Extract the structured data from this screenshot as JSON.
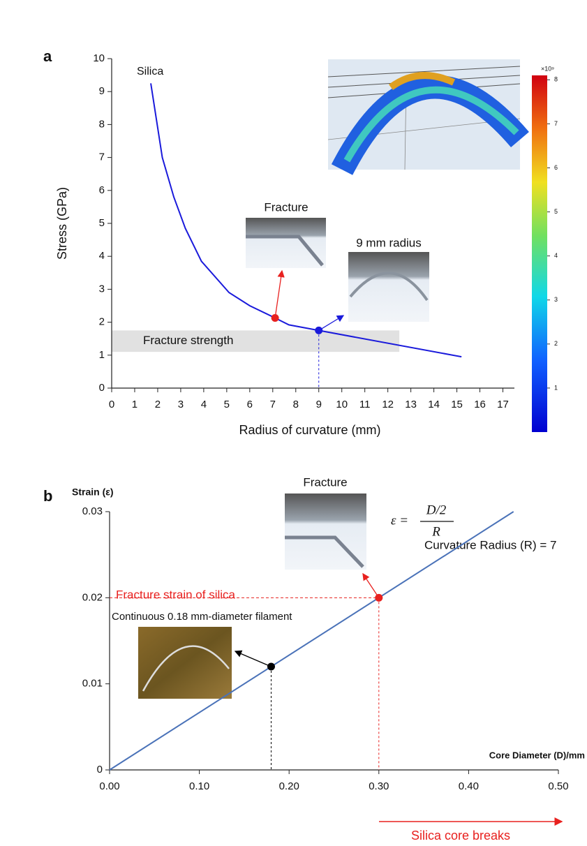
{
  "chart_data": [
    {
      "type": "line",
      "panel_label": "a",
      "x_label": "Radius of curvature (mm)",
      "y_label": "Stress (GPa)",
      "xlim": [
        0,
        17.5
      ],
      "ylim": [
        0,
        10
      ],
      "xticks": [
        0,
        1,
        2,
        3,
        4,
        5,
        6,
        7,
        8,
        9,
        10,
        11,
        12,
        13,
        14,
        15,
        16,
        17
      ],
      "yticks": [
        0,
        1,
        2,
        3,
        4,
        5,
        6,
        7,
        8,
        9,
        10
      ],
      "series": [
        {
          "name": "Silica",
          "color": "#1a1adb",
          "x": [
            1.7,
            2.2,
            2.7,
            3.2,
            3.9,
            5.1,
            6.0,
            7.1,
            7.7,
            9.0,
            15.2
          ],
          "values": [
            9.25,
            7.0,
            5.8,
            4.85,
            3.85,
            2.9,
            2.5,
            2.13,
            1.92,
            1.75,
            0.95
          ]
        }
      ],
      "band": {
        "label": "Fracture strength",
        "y": [
          1.1,
          1.75
        ],
        "x": [
          0,
          12.5
        ]
      },
      "points": [
        {
          "x": 7.1,
          "y": 2.13,
          "color": "#e8211f",
          "label": "Fracture"
        },
        {
          "x": 9.0,
          "y": 1.75,
          "color": "#1a1adb",
          "label": "9 mm radius"
        }
      ],
      "colorbar": {
        "multiplier": "×10⁹",
        "lim": [
          0,
          8.1
        ],
        "ticks": [
          1,
          2,
          3,
          4,
          5,
          6,
          7,
          8
        ]
      }
    },
    {
      "type": "line",
      "panel_label": "b",
      "x_label": "Core Diameter (D)/mm",
      "y_label": "Strain (ε)",
      "xlim": [
        0,
        0.5
      ],
      "ylim": [
        0,
        0.03
      ],
      "xticks": [
        {
          "value": 0,
          "label": "0.00"
        },
        {
          "value": 0.1,
          "label": "0.10"
        },
        {
          "value": 0.2,
          "label": "0.20"
        },
        {
          "value": 0.3,
          "label": "0.30"
        },
        {
          "value": 0.4,
          "label": "0.40"
        },
        {
          "value": 0.5,
          "label": "0.50"
        }
      ],
      "yticks": [
        0,
        0.01,
        0.02,
        0.03
      ],
      "series": [
        {
          "color": "#4a72b8",
          "x": [
            0,
            0.45
          ],
          "values": [
            0,
            0.03
          ]
        }
      ],
      "points": [
        {
          "x": 0.18,
          "y": 0.012,
          "color": "#000000",
          "label": "Continuous 0.18 mm-diameter filament"
        },
        {
          "x": 0.3,
          "y": 0.02,
          "color": "#e8211f",
          "label": "Fracture"
        }
      ],
      "annotations": {
        "fracture_strain": "Fracture strain of silica",
        "equation": [
          "ε =",
          "D/2",
          "R"
        ],
        "curvature": "Curvature Radius (R) = 7",
        "breaks": "Silica core breaks"
      }
    }
  ]
}
